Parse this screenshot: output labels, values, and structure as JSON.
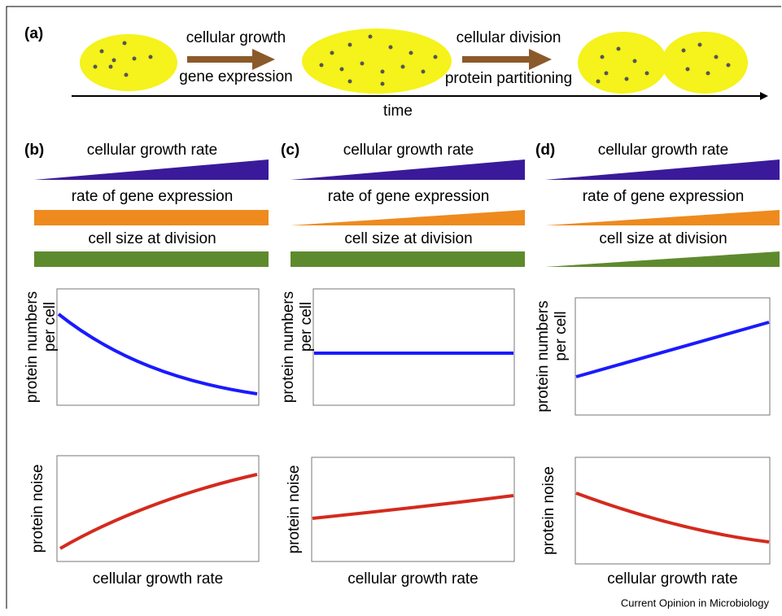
{
  "panel_a": {
    "label": "(a)",
    "steps": [
      {
        "top": "cellular growth",
        "bottom": "gene expression"
      },
      {
        "top": "cellular division",
        "bottom": "protein partitioning"
      }
    ],
    "axis_label": "time"
  },
  "panels": [
    {
      "label": "(b)",
      "bars": [
        "cellular growth rate",
        "rate of gene expression",
        "cell size at division"
      ],
      "numbers_ylabel": [
        "protein numbers",
        "per cell"
      ],
      "noise_ylabel": "protein noise",
      "xlabel": "cellular growth rate"
    },
    {
      "label": "(c)",
      "bars": [
        "cellular growth rate",
        "rate of gene expression",
        "cell size at division"
      ],
      "numbers_ylabel": [
        "protein numbers",
        "per cell"
      ],
      "noise_ylabel": "protein noise",
      "xlabel": "cellular growth rate"
    },
    {
      "label": "(d)",
      "bars": [
        "cellular growth rate",
        "rate of gene expression",
        "cell size at division"
      ],
      "numbers_ylabel": [
        "protein numbers",
        "per cell"
      ],
      "noise_ylabel": "protein noise",
      "xlabel": "cellular growth rate"
    }
  ],
  "credit": "Current Opinion in Microbiology"
}
